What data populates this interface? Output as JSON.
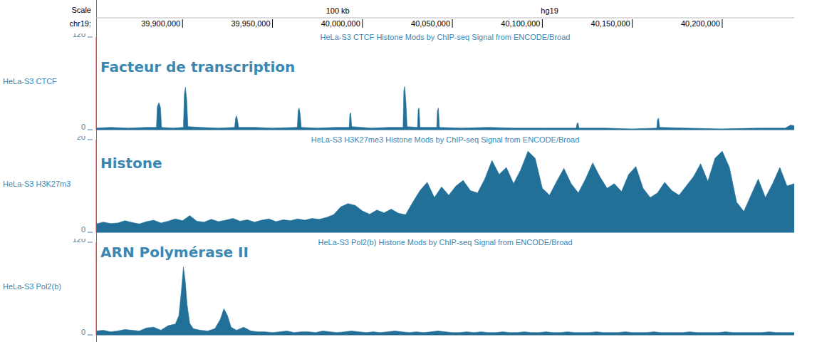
{
  "chart_data": [
    {
      "type": "ruler",
      "annotations": [
        "Scale",
        "hg19"
      ],
      "x_label": "chr19:",
      "xlim": [
        39852000,
        40240000
      ],
      "xticks": [
        {
          "value": 39900000,
          "label": "39,900,000"
        },
        {
          "value": 39950000,
          "label": "39,950,000"
        },
        {
          "value": 40000000,
          "label": "40,000,000"
        },
        {
          "value": 40050000,
          "label": "40,050,000"
        },
        {
          "value": 40100000,
          "label": "40,100,000"
        },
        {
          "value": 40150000,
          "label": "40,150,000"
        },
        {
          "value": 40200000,
          "label": "40,200,000"
        }
      ],
      "scale_bar": {
        "value": 100000,
        "label": "100 kb"
      }
    },
    {
      "type": "area",
      "title": "HeLa-S3 CTCF Histone Mods by ChIP-seq Signal from ENCODE/Broad",
      "subtitle": "Facteur de transcription",
      "y_label": "HeLa-S3 CTCF",
      "color": "#226f98",
      "xlim": [
        39852000,
        40240000
      ],
      "ylim": [
        0,
        120
      ],
      "yticks": [
        0,
        120
      ],
      "tick_labels": "y",
      "x": [
        39852000,
        39860000,
        39870000,
        39880000,
        39885500,
        39886000,
        39886900,
        39887800,
        39888300,
        39895000,
        39900500,
        39901000,
        39901600,
        39902300,
        39903000,
        39910000,
        39920000,
        39929000,
        39929500,
        39930000,
        39930600,
        39931200,
        39940000,
        39950000,
        39963800,
        39964300,
        39964800,
        39965400,
        39966000,
        39975000,
        39985000,
        39992600,
        39993000,
        39993500,
        39994000,
        40005000,
        40015000,
        40022600,
        40023000,
        40023500,
        40024200,
        40024800,
        40030600,
        40031000,
        40031500,
        40032000,
        40041300,
        40041700,
        40042200,
        40042800,
        40055000,
        40070000,
        40085000,
        40100000,
        40118800,
        40119300,
        40119800,
        40120400,
        40135000,
        40150000,
        40163600,
        40164000,
        40164600,
        40165200,
        40180000,
        40200000,
        40220000,
        40235000,
        40238000,
        40240000
      ],
      "values": [
        2,
        3,
        2,
        3,
        3,
        30,
        35,
        28,
        3,
        2,
        3,
        45,
        55,
        40,
        4,
        3,
        2,
        3,
        15,
        18,
        12,
        3,
        3,
        2,
        3,
        25,
        28,
        20,
        3,
        2,
        3,
        3,
        20,
        22,
        4,
        2,
        3,
        3,
        50,
        56,
        35,
        4,
        3,
        26,
        28,
        3,
        3,
        25,
        28,
        3,
        2,
        3,
        2,
        2,
        2,
        8,
        9,
        2,
        2,
        1,
        2,
        13,
        15,
        3,
        2,
        1,
        2,
        2,
        6,
        5
      ]
    },
    {
      "type": "area",
      "title": "HeLa-S3 H3K27me3 Histone Mods by ChIP-seq Signal from ENCODE/Broad",
      "subtitle": "Histone",
      "y_label": "HeLa-S3 H3K27m3",
      "color": "#226f98",
      "xlim": [
        39852000,
        40240000
      ],
      "ylim": [
        0,
        20
      ],
      "yticks": [
        0,
        20
      ],
      "tick_labels": "y",
      "x": [
        39852000,
        39856000,
        39860000,
        39864000,
        39868000,
        39872000,
        39876000,
        39880000,
        39884000,
        39888000,
        39892000,
        39896000,
        39900000,
        39904000,
        39908000,
        39912000,
        39916000,
        39920000,
        39924000,
        39928000,
        39932000,
        39936000,
        39940000,
        39944000,
        39948000,
        39952000,
        39956000,
        39960000,
        39964000,
        39968000,
        39972000,
        39976000,
        39980000,
        39984000,
        39988000,
        39992000,
        39996000,
        40000000,
        40004000,
        40008000,
        40012000,
        40016000,
        40020000,
        40024000,
        40028000,
        40032000,
        40036000,
        40040000,
        40044000,
        40048000,
        40052000,
        40056000,
        40060000,
        40064000,
        40068000,
        40072000,
        40076000,
        40080000,
        40084000,
        40088000,
        40092000,
        40096000,
        40100000,
        40104000,
        40108000,
        40112000,
        40116000,
        40120000,
        40124000,
        40128000,
        40132000,
        40136000,
        40140000,
        40144000,
        40148000,
        40152000,
        40156000,
        40160000,
        40164000,
        40168000,
        40172000,
        40176000,
        40180000,
        40184000,
        40188000,
        40192000,
        40196000,
        40200000,
        40204000,
        40208000,
        40212000,
        40216000,
        40220000,
        40224000,
        40228000,
        40232000,
        40236000,
        40240000
      ],
      "values": [
        1.8,
        2.2,
        1.9,
        2.0,
        2.5,
        2.1,
        1.8,
        2.3,
        2.6,
        2.0,
        2.4,
        2.9,
        2.5,
        3.6,
        2.4,
        2.2,
        2.8,
        2.3,
        2.6,
        3.0,
        2.4,
        2.7,
        2.2,
        2.6,
        2.9,
        2.3,
        2.7,
        2.5,
        2.9,
        2.6,
        3.0,
        2.8,
        3.2,
        3.8,
        5.5,
        6.2,
        5.8,
        4.6,
        3.9,
        4.8,
        4.2,
        5.0,
        4.1,
        3.8,
        6.5,
        9.0,
        10.8,
        7.5,
        9.8,
        8.0,
        10.0,
        11.2,
        9.0,
        8.5,
        11.5,
        15.5,
        12.5,
        14.0,
        10.5,
        13.5,
        17.5,
        16.0,
        9.5,
        8.0,
        11.0,
        13.8,
        10.5,
        8.5,
        11.5,
        15.0,
        12.0,
        9.5,
        10.5,
        8.8,
        12.5,
        14.2,
        9.5,
        7.5,
        8.5,
        10.8,
        9.0,
        8.0,
        10.0,
        12.0,
        14.8,
        11.0,
        16.0,
        17.5,
        14.0,
        6.5,
        4.5,
        8.0,
        11.5,
        7.5,
        10.5,
        14.0,
        10.0,
        10.5
      ]
    },
    {
      "type": "area",
      "title": "HeLa-S3 Pol2(b) Histone Mods by ChIP-seq Signal from ENCODE/Broad",
      "subtitle": "ARN Polymérase II",
      "y_label": "HeLa-S3 Pol2(b)",
      "color": "#226f98",
      "xlim": [
        39852000,
        40240000
      ],
      "ylim": [
        0,
        120
      ],
      "yticks": [
        0,
        120
      ],
      "tick_labels": "y",
      "x": [
        39852000,
        39856000,
        39860000,
        39864000,
        39868000,
        39872000,
        39876000,
        39880000,
        39884000,
        39888000,
        39892000,
        39896000,
        39898000,
        39899500,
        39900500,
        39901500,
        39902500,
        39904000,
        39906000,
        39910000,
        39914000,
        39918000,
        39921000,
        39923000,
        39925000,
        39927000,
        39930000,
        39934000,
        39938000,
        39942000,
        39946000,
        39950000,
        39954000,
        39958000,
        39962000,
        39966000,
        39970000,
        39974000,
        39978000,
        39982000,
        39986000,
        39990000,
        39994000,
        39998000,
        40002000,
        40006000,
        40010000,
        40014000,
        40018000,
        40022000,
        40026000,
        40030000,
        40034000,
        40038000,
        40042000,
        40046000,
        40050000,
        40054000,
        40058000,
        40062000,
        40066000,
        40070000,
        40074000,
        40078000,
        40082000,
        40086000,
        40090000,
        40094000,
        40098000,
        40102000,
        40106000,
        40110000,
        40114000,
        40118000,
        40122000,
        40126000,
        40130000,
        40134000,
        40138000,
        40142000,
        40146000,
        40150000,
        40154000,
        40158000,
        40162000,
        40166000,
        40170000,
        40174000,
        40178000,
        40182000,
        40186000,
        40190000,
        40194000,
        40198000,
        40202000,
        40206000,
        40210000,
        40214000,
        40218000,
        40222000,
        40226000,
        40230000,
        40234000,
        40238000,
        40240000
      ],
      "values": [
        5,
        6,
        4,
        5,
        7,
        6,
        5,
        9,
        10,
        6,
        12,
        14,
        25,
        60,
        88,
        70,
        40,
        15,
        8,
        6,
        5,
        8,
        20,
        34,
        25,
        10,
        6,
        10,
        5,
        4,
        4,
        3,
        4,
        5,
        3,
        4,
        4,
        3,
        5,
        4,
        3,
        4,
        5,
        4,
        3,
        4,
        3,
        4,
        5,
        4,
        3,
        4,
        3,
        4,
        5,
        4,
        3,
        3,
        4,
        3,
        4,
        3,
        3,
        4,
        3,
        3,
        4,
        3,
        3,
        4,
        3,
        3,
        4,
        3,
        3,
        3,
        4,
        3,
        3,
        3,
        4,
        3,
        3,
        3,
        4,
        3,
        3,
        3,
        3,
        4,
        3,
        3,
        3,
        3,
        4,
        3,
        3,
        3,
        3,
        3,
        4,
        3,
        3,
        3,
        3
      ]
    }
  ]
}
